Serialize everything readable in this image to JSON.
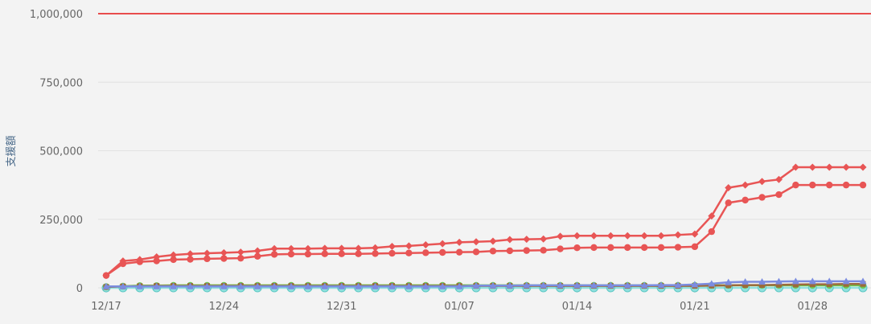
{
  "chart_data": {
    "type": "line",
    "title": "",
    "xlabel": "",
    "ylabel": "支援額",
    "ylim": [
      0,
      1000000
    ],
    "yticks": [
      0,
      250000,
      500000,
      750000,
      1000000
    ],
    "ytick_labels": [
      "0",
      "250,000",
      "500,000",
      "750,000",
      "1,000,000"
    ],
    "x": [
      "12/17",
      "12/18",
      "12/19",
      "12/20",
      "12/21",
      "12/22",
      "12/23",
      "12/24",
      "12/25",
      "12/26",
      "12/27",
      "12/28",
      "12/29",
      "12/30",
      "12/31",
      "01/01",
      "01/02",
      "01/03",
      "01/04",
      "01/05",
      "01/06",
      "01/07",
      "01/08",
      "01/09",
      "01/10",
      "01/11",
      "01/12",
      "01/13",
      "01/14",
      "01/15",
      "01/16",
      "01/17",
      "01/18",
      "01/19",
      "01/20",
      "01/21",
      "01/22",
      "01/23",
      "01/24",
      "01/25",
      "01/26",
      "01/27",
      "01/28",
      "01/29",
      "01/30",
      "01/31"
    ],
    "xtick_labels": [
      "12/17",
      "12/24",
      "12/31",
      "01/07",
      "01/14",
      "01/21",
      "01/28"
    ],
    "target_line": {
      "value": 1000000,
      "color": "#e84c4c"
    },
    "grid": true,
    "series": [
      {
        "color": "#e85555",
        "marker": "diamond",
        "values": [
          45000,
          98000,
          103000,
          113000,
          120000,
          124000,
          126000,
          128000,
          130000,
          135000,
          143000,
          143000,
          143000,
          144000,
          144000,
          144000,
          146000,
          151000,
          153000,
          157000,
          161000,
          166000,
          168000,
          170000,
          176000,
          177000,
          178000,
          188000,
          190000,
          190000,
          190000,
          190000,
          190000,
          190000,
          193000,
          196000,
          262000,
          365000,
          375000,
          388000,
          395000,
          440000,
          440000,
          440000,
          440000,
          440000
        ]
      },
      {
        "color": "#e85555",
        "marker": "circle",
        "values": [
          45000,
          88000,
          95000,
          98000,
          103000,
          104000,
          106000,
          107000,
          108000,
          115000,
          122000,
          123000,
          123000,
          124000,
          124000,
          124000,
          125000,
          126000,
          127000,
          128000,
          129000,
          130000,
          131000,
          134000,
          135000,
          136000,
          137000,
          142000,
          146000,
          147000,
          147000,
          147000,
          147000,
          147000,
          148000,
          150000,
          205000,
          310000,
          320000,
          330000,
          340000,
          375000,
          375000,
          375000,
          375000,
          375000
        ]
      },
      {
        "color": "#7c8ce0",
        "marker": "triangle",
        "values": [
          5000,
          5000,
          5000,
          5000,
          5000,
          5000,
          5000,
          5000,
          5000,
          5000,
          5000,
          5000,
          5000,
          5000,
          5000,
          5000,
          5000,
          5000,
          5000,
          5000,
          5000,
          5000,
          8000,
          8000,
          8000,
          9000,
          9000,
          9000,
          9000,
          9000,
          9000,
          9000,
          9000,
          10000,
          10000,
          12000,
          15000,
          20000,
          22000,
          22000,
          23000,
          24000,
          24000,
          24000,
          24000,
          24000
        ]
      },
      {
        "color": "#9c6a3c",
        "marker": "square",
        "values": [
          3000,
          5000,
          6000,
          7000,
          7000,
          7000,
          7000,
          7000,
          7000,
          7000,
          7000,
          7000,
          7000,
          7000,
          7000,
          7000,
          7000,
          7000,
          7000,
          7000,
          7000,
          7000,
          7000,
          7000,
          7000,
          7000,
          7000,
          7000,
          7000,
          7000,
          7000,
          7000,
          7000,
          7000,
          7000,
          7000,
          8000,
          9000,
          10000,
          10000,
          11000,
          12000,
          13000,
          13000,
          14000,
          14000
        ]
      },
      {
        "color": "#6cc850",
        "marker": "circle",
        "values": [
          4000,
          6000,
          8000,
          8000,
          9000,
          9000,
          9000,
          9000,
          9000,
          9000,
          9000,
          9000,
          9000,
          9000,
          9000,
          9000,
          9000,
          9000,
          9000,
          9000,
          9000,
          9000,
          9000,
          9000,
          9000,
          9000,
          9000,
          9000,
          9000,
          9000,
          9000,
          9000,
          9000,
          9000,
          9000,
          9000,
          9000,
          9000,
          9000,
          9000,
          9000,
          9000,
          9000,
          9000,
          9000,
          9000
        ]
      },
      {
        "color": "#8fe0de",
        "marker": "circle",
        "values": [
          0,
          0,
          0,
          0,
          0,
          0,
          0,
          0,
          0,
          0,
          0,
          0,
          0,
          0,
          0,
          0,
          0,
          0,
          0,
          0,
          0,
          0,
          0,
          0,
          0,
          0,
          0,
          0,
          0,
          0,
          0,
          0,
          0,
          0,
          0,
          0,
          0,
          0,
          0,
          0,
          0,
          0,
          0,
          0,
          0,
          0
        ]
      }
    ]
  }
}
